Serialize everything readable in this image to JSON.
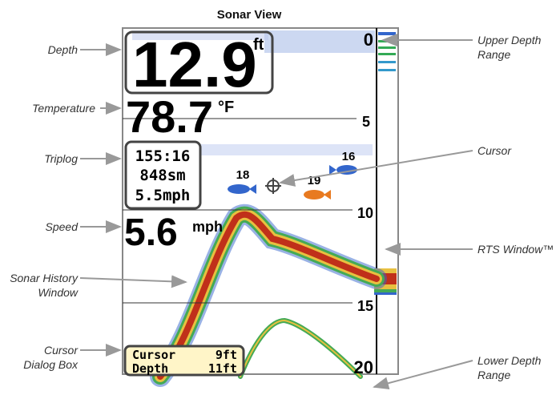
{
  "title": "Sonar View",
  "callouts_left": [
    {
      "lines": [
        "Depth"
      ]
    },
    {
      "lines": [
        "Temperature"
      ]
    },
    {
      "lines": [
        "Triplog"
      ]
    },
    {
      "lines": [
        "Speed"
      ]
    },
    {
      "lines": [
        "Sonar History",
        "Window"
      ]
    },
    {
      "lines": [
        "Cursor",
        "Dialog Box"
      ]
    }
  ],
  "callouts_right": [
    {
      "lines": [
        "Upper Depth",
        "Range"
      ]
    },
    {
      "lines": [
        "Cursor"
      ]
    },
    {
      "lines": [
        "RTS Window™"
      ]
    },
    {
      "lines": [
        "Lower Depth",
        "Range"
      ]
    }
  ],
  "screen": {
    "depth": {
      "value": "12.9",
      "unit": "ft"
    },
    "temperature": {
      "value": "78.7",
      "unit": "°F"
    },
    "triplog": [
      "155:16",
      "848sm",
      "5.5mph"
    ],
    "speed": {
      "value": "5.6",
      "unit": "mph"
    },
    "depth_scale": [
      "0",
      "5",
      "10",
      "15",
      "20"
    ],
    "fish_depths": [
      "18",
      "19",
      "16"
    ],
    "cursor_dialog": {
      "label1": "Cursor",
      "value1": "9ft",
      "label2": "Depth",
      "value2": "11ft"
    }
  }
}
